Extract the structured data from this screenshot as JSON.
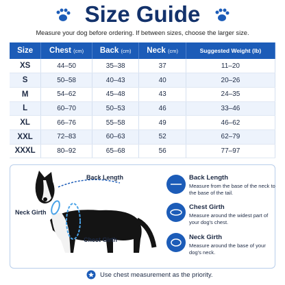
{
  "header": {
    "title": "Size Guide",
    "subtitle": "Measure your dog before ordering. If between sizes, choose the larger size."
  },
  "table": {
    "columns": [
      {
        "label": "Size"
      },
      {
        "label": "Chest",
        "unit": "(cm)"
      },
      {
        "label": "Back",
        "unit": "(cm)"
      },
      {
        "label": "Neck",
        "unit": "(cm)"
      },
      {
        "label": "Suggested Weight (lb)"
      }
    ],
    "rows": [
      [
        "XS",
        "44–50",
        "35–38",
        "37",
        "11–20"
      ],
      [
        "S",
        "50–58",
        "40–43",
        "40",
        "20–26"
      ],
      [
        "M",
        "54–62",
        "45–48",
        "43",
        "24–35"
      ],
      [
        "L",
        "60–70",
        "50–53",
        "46",
        "33–46"
      ],
      [
        "XL",
        "66–76",
        "55–58",
        "49",
        "46–62"
      ],
      [
        "XXL",
        "72–83",
        "60–63",
        "52",
        "62–79"
      ],
      [
        "XXXL",
        "80–92",
        "65–68",
        "56",
        "77–97"
      ]
    ]
  },
  "diagram": {
    "labels": [
      "Back Length",
      "Neck Girth",
      "Chest Girth"
    ]
  },
  "measurements": [
    {
      "title": "Back Length",
      "description": "Measure from the base of the neck to the base of the tail."
    },
    {
      "title": "Chest Girth",
      "description": "Measure around the widest part of your dog's chest."
    },
    {
      "title": "Neck Girth",
      "description": "Measure around the base of your dog's neck."
    }
  ],
  "footer": {
    "note": "Use chest measurement as the priority."
  }
}
